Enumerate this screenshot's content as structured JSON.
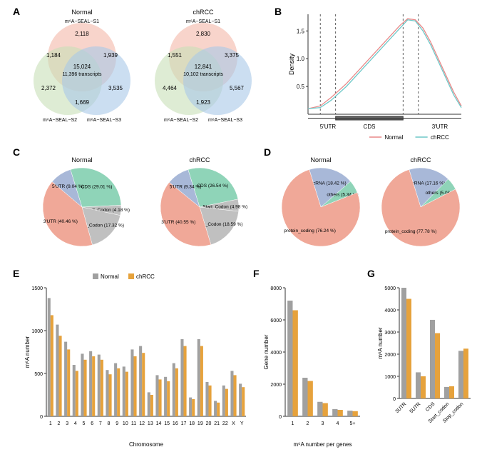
{
  "colors": {
    "normal_gray": "#a0a0a0",
    "chrcc_orange": "#e6a23c",
    "venn_pink": "#f4b8a8",
    "venn_blue": "#a8c8e8",
    "venn_green": "#c8e0b8",
    "pie_green": "#8fd4b8",
    "pie_blue": "#a8b8d8",
    "pie_gray": "#c0c0c0",
    "pie_salmon": "#f0a898",
    "line_normal": "#e88888",
    "line_chrcc": "#6ec8c8",
    "axis": "#333333"
  },
  "panelA": {
    "letter": "A",
    "normal": {
      "title": "Normal",
      "s1": "m⁶A−SEAL−S1",
      "s2": "m⁶A−SEAL−S2",
      "s3": "m⁶A−SEAL−S3",
      "v1": "2,118",
      "v12": "1,939",
      "v13": "1,184",
      "center1": "15,024",
      "center2": "11,396 transcripts",
      "v2": "2,372",
      "v23": "3,535",
      "v3": "1,669",
      "v23b": "1,669",
      "v2only": "2,372",
      "v3only": "3,535_unused"
    },
    "chrcc": {
      "title": "chRCC",
      "s1": "m⁶A−SEAL−S1",
      "s2": "m⁶A−SEAL−S2",
      "s3": "m⁶A−SEAL−S3",
      "v1": "2,830",
      "v12": "3,375",
      "v13": "1,551",
      "center1": "12,841",
      "center2": "10,102 transcripts",
      "v2": "4,464",
      "v23": "5,567",
      "v3": "1,923"
    },
    "normal_nums": {
      "top": "2,118",
      "left": "1,184",
      "right": "1,939",
      "c1": "15,024",
      "c2": "11,396 transcripts",
      "bl": "2,372",
      "br": "3,535",
      "bottom": "1,669"
    },
    "chrcc_nums": {
      "top": "2,830",
      "left": "1,551",
      "right": "3,375",
      "c1": "12,841",
      "c2": "10,102 transcripts",
      "bl": "4,464",
      "br": "5,567",
      "bottom": "1,923"
    }
  },
  "panelB": {
    "letter": "B",
    "ylabel": "Density",
    "xlabels": [
      "5'UTR",
      "CDS",
      "3'UTR"
    ],
    "ylim": [
      0,
      1.8
    ],
    "yticks": [
      "0.5",
      "1.0",
      "1.5"
    ],
    "normal_label": "Normal",
    "chrcc_label": "chRCC",
    "normal_path": [
      [
        0,
        0.1
      ],
      [
        0.08,
        0.15
      ],
      [
        0.15,
        0.3
      ],
      [
        0.25,
        0.55
      ],
      [
        0.35,
        0.85
      ],
      [
        0.45,
        1.15
      ],
      [
        0.55,
        1.45
      ],
      [
        0.6,
        1.6
      ],
      [
        0.65,
        1.72
      ],
      [
        0.7,
        1.7
      ],
      [
        0.75,
        1.55
      ],
      [
        0.8,
        1.3
      ],
      [
        0.85,
        1.0
      ],
      [
        0.9,
        0.7
      ],
      [
        0.95,
        0.4
      ],
      [
        1,
        0.15
      ]
    ],
    "chrcc_path": [
      [
        0,
        0.1
      ],
      [
        0.08,
        0.12
      ],
      [
        0.15,
        0.25
      ],
      [
        0.25,
        0.5
      ],
      [
        0.35,
        0.8
      ],
      [
        0.45,
        1.1
      ],
      [
        0.55,
        1.4
      ],
      [
        0.6,
        1.55
      ],
      [
        0.65,
        1.7
      ],
      [
        0.7,
        1.68
      ],
      [
        0.75,
        1.5
      ],
      [
        0.8,
        1.25
      ],
      [
        0.85,
        0.95
      ],
      [
        0.9,
        0.65
      ],
      [
        0.95,
        0.35
      ],
      [
        1,
        0.12
      ]
    ]
  },
  "panelC": {
    "letter": "C",
    "normal_title": "Normal",
    "chrcc_title": "chRCC",
    "normal": [
      {
        "label": "CDS (29.01 %)",
        "pct": 29.01,
        "color": "#8fd4b8"
      },
      {
        "label": "Start_Codon (4.18 %)",
        "pct": 4.18,
        "color": "#c0c0c0"
      },
      {
        "label": "Stop_Codon (17.32 %)",
        "pct": 17.32,
        "color": "#c0c0c0"
      },
      {
        "label": "3'UTR (40.46 %)",
        "pct": 40.46,
        "color": "#f0a898"
      },
      {
        "label": "5'UTR (9.04 %)",
        "pct": 9.04,
        "color": "#a8b8d8"
      }
    ],
    "chrcc": [
      {
        "label": "CDS (26.54 %)",
        "pct": 26.54,
        "color": "#8fd4b8"
      },
      {
        "label": "Start_Codon (4.98 %)",
        "pct": 4.98,
        "color": "#c0c0c0"
      },
      {
        "label": "Stop_Codon (18.59 %)",
        "pct": 18.59,
        "color": "#c0c0c0"
      },
      {
        "label": "3'UTR (40.55 %)",
        "pct": 40.55,
        "color": "#f0a898"
      },
      {
        "label": "5'UTR (9.34 %)",
        "pct": 9.34,
        "color": "#a8b8d8"
      }
    ]
  },
  "panelD": {
    "letter": "D",
    "normal_title": "Normal",
    "chrcc_title": "chRCC",
    "normal": [
      {
        "label": "lncRNA (18.42 %)",
        "pct": 18.42,
        "color": "#a8b8d8"
      },
      {
        "label": "others (5.34 %)",
        "pct": 5.34,
        "color": "#8fd4b8"
      },
      {
        "label": "protein_coding (76.24 %)",
        "pct": 76.24,
        "color": "#f0a898"
      }
    ],
    "chrcc": [
      {
        "label": "lncRNA (17.16 %)",
        "pct": 17.16,
        "color": "#a8b8d8"
      },
      {
        "label": "others (5.06 %)",
        "pct": 5.06,
        "color": "#8fd4b8"
      },
      {
        "label": "protein_coding (77.78 %)",
        "pct": 77.78,
        "color": "#f0a898"
      }
    ]
  },
  "panelE": {
    "letter": "E",
    "ylabel": "m⁶A number",
    "xlabel": "Chromosome",
    "legend": [
      "Normal",
      "chRCC"
    ],
    "ylim": [
      0,
      1500
    ],
    "yticks": [
      0,
      500,
      1000,
      1500
    ],
    "cats": [
      "1",
      "2",
      "3",
      "4",
      "5",
      "6",
      "7",
      "8",
      "9",
      "10",
      "11",
      "12",
      "13",
      "14",
      "15",
      "16",
      "17",
      "18",
      "19",
      "20",
      "21",
      "22",
      "X",
      "Y"
    ],
    "normal": [
      1380,
      1070,
      870,
      600,
      730,
      760,
      720,
      540,
      620,
      580,
      780,
      820,
      280,
      480,
      460,
      620,
      900,
      220,
      900,
      400,
      180,
      360,
      530,
      380
    ],
    "chrcc": [
      1180,
      940,
      780,
      530,
      660,
      700,
      660,
      490,
      560,
      520,
      700,
      740,
      250,
      430,
      410,
      560,
      820,
      200,
      820,
      360,
      160,
      320,
      480,
      340
    ]
  },
  "panelF": {
    "letter": "F",
    "ylabel": "Gene number",
    "ylim": [
      0,
      8000
    ],
    "yticks": [
      0,
      2000,
      4000,
      6000,
      8000
    ],
    "xlabel": "m⁶A number per genes",
    "cats": [
      "1",
      "2",
      "3",
      "4",
      "5+"
    ],
    "normal": [
      7200,
      2400,
      900,
      450,
      350
    ],
    "chrcc": [
      6600,
      2200,
      820,
      400,
      320
    ]
  },
  "panelG": {
    "letter": "G",
    "ylabel": "m⁶A number",
    "ylim": [
      0,
      5000
    ],
    "yticks": [
      0,
      1000,
      2000,
      3000,
      4000,
      5000
    ],
    "cats": [
      "3UTR",
      "5UTR",
      "CDS",
      "Start_codon",
      "Stop_codon"
    ],
    "normal": [
      5000,
      1180,
      3550,
      520,
      2150
    ],
    "chrcc": [
      4500,
      1000,
      2950,
      550,
      2250
    ]
  }
}
